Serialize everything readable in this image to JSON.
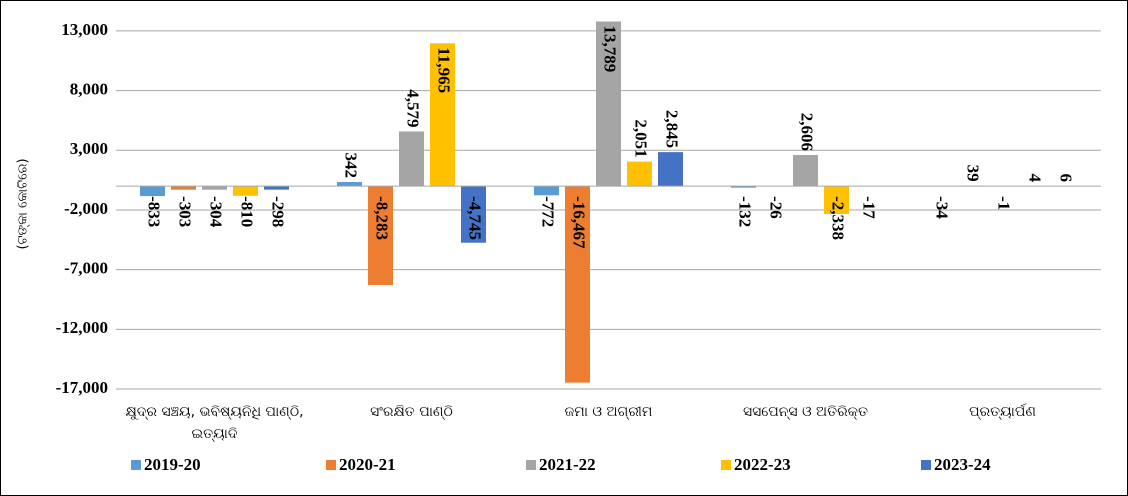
{
  "chart_data": {
    "type": "bar",
    "y_axis_label": "(ଟଙ୍କା କୋଟିରେ)",
    "categories": [
      "କ୍ଷୁଦ୍ର ସଞ୍ଚୟ, ଭବିଷ୍ୟନିଧି ପାଣ୍ଠି, ଇତ୍ୟାଦି",
      "ସଂରକ୍ଷିତ ପାଣ୍ଠି",
      "ଜମା ଓ ଅଗ୍ରୀମ",
      "ସସପେନ୍ସ ଓ ଅତିରିକ୍ତ",
      "ପ୍ରତ୍ୟାର୍ପଣ"
    ],
    "series": [
      {
        "name": "2019-20",
        "color": "#5b9bd5",
        "values": [
          -833,
          342,
          -772,
          -132,
          -34
        ],
        "value_labels": [
          "-833",
          "342",
          "-772",
          "-132",
          "-34"
        ]
      },
      {
        "name": "2020-21",
        "color": "#ed7d31",
        "values": [
          -303,
          -8283,
          -16467,
          -26,
          39
        ],
        "value_labels": [
          "-303",
          "-8,283",
          "-16,467",
          "-26",
          "39"
        ]
      },
      {
        "name": "2021-22",
        "color": "#a5a5a5",
        "values": [
          -304,
          4579,
          13789,
          2606,
          -1
        ],
        "value_labels": [
          "-304",
          "4,579",
          "13,789",
          "2,606",
          "-1"
        ]
      },
      {
        "name": "2022-23",
        "color": "#ffc000",
        "values": [
          -810,
          11965,
          2051,
          -2338,
          4
        ],
        "value_labels": [
          "-810",
          "11,965",
          "2,051",
          "-2,338",
          "4"
        ]
      },
      {
        "name": "2023-24",
        "color": "#4472c4",
        "values": [
          -298,
          -4745,
          2845,
          -17,
          6
        ],
        "value_labels": [
          "-298",
          "-4,745",
          "2,845",
          "-17",
          "6"
        ]
      }
    ],
    "ylim": [
      -17000,
      14000
    ],
    "yticks": [
      {
        "value": -17000,
        "label": "-17,000"
      },
      {
        "value": -12000,
        "label": "-12,000"
      },
      {
        "value": -7000,
        "label": "-7,000"
      },
      {
        "value": -2000,
        "label": "-2,000"
      },
      {
        "value": 3000,
        "label": "3,000"
      },
      {
        "value": 8000,
        "label": "8,000"
      },
      {
        "value": 13000,
        "label": "13,000"
      }
    ],
    "grid": true,
    "legend": "bottom"
  }
}
